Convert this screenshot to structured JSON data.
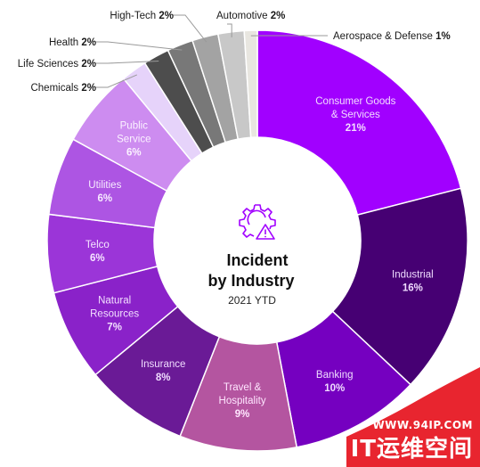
{
  "chart_data": {
    "type": "pie",
    "title": "Incident",
    "title_line2": "by Industry",
    "subtitle": "2021 YTD",
    "slices": [
      {
        "name": "Consumer Goods & Services",
        "value": 21,
        "pct_label": "21%",
        "label_lines": [
          "Consumer Goods",
          "& Services"
        ],
        "color": "#a100ff",
        "text_color": "#f3dcff"
      },
      {
        "name": "Industrial",
        "value": 16,
        "pct_label": "16%",
        "label_lines": [
          "Industrial"
        ],
        "color": "#460073",
        "text_color": "#f0dcff"
      },
      {
        "name": "Banking",
        "value": 10,
        "pct_label": "10%",
        "label_lines": [
          "Banking"
        ],
        "color": "#7500c0",
        "text_color": "#f0dcff"
      },
      {
        "name": "Travel & Hospitality",
        "value": 9,
        "pct_label": "9%",
        "label_lines": [
          "Travel &",
          "Hospitality"
        ],
        "color": "#b455a0",
        "text_color": "#ffe6ff"
      },
      {
        "name": "Insurance",
        "value": 8,
        "pct_label": "8%",
        "label_lines": [
          "Insurance"
        ],
        "color": "#6a1a96",
        "text_color": "#f0dcff"
      },
      {
        "name": "Natural Resources",
        "value": 7,
        "pct_label": "7%",
        "label_lines": [
          "Natural",
          "Resources"
        ],
        "color": "#8a22c9",
        "text_color": "#f3e0ff"
      },
      {
        "name": "Telco",
        "value": 6,
        "pct_label": "6%",
        "label_lines": [
          "Telco"
        ],
        "color": "#9b35d8",
        "text_color": "#f6e6ff"
      },
      {
        "name": "Utilities",
        "value": 6,
        "pct_label": "6%",
        "label_lines": [
          "Utilities"
        ],
        "color": "#ad55e3",
        "text_color": "#f8ecff"
      },
      {
        "name": "Public Service",
        "value": 6,
        "pct_label": "6%",
        "label_lines": [
          "Public",
          "Service"
        ],
        "color": "#cd8cf0",
        "text_color": "#fbf2ff"
      },
      {
        "name": "Chemicals",
        "value": 2,
        "pct_label": "2%",
        "label_lines": [
          "Chemicals"
        ],
        "color": "#e6d3fa",
        "external": true,
        "label_side": "left"
      },
      {
        "name": "Life Sciences",
        "value": 2,
        "pct_label": "2%",
        "label_lines": [
          "Life Sciences"
        ],
        "color": "#4d4d4d",
        "external": true,
        "label_side": "left"
      },
      {
        "name": "Health",
        "value": 2,
        "pct_label": "2%",
        "label_lines": [
          "Health"
        ],
        "color": "#787878",
        "external": true,
        "label_side": "left"
      },
      {
        "name": "High-Tech",
        "value": 2,
        "pct_label": "2%",
        "label_lines": [
          "High-Tech"
        ],
        "color": "#a3a3a3",
        "external": true,
        "label_side": "left"
      },
      {
        "name": "Automotive",
        "value": 2,
        "pct_label": "2%",
        "label_lines": [
          "Automotive"
        ],
        "color": "#c8c8c8",
        "external": true,
        "label_side": "right"
      },
      {
        "name": "Aerospace & Defense",
        "value": 1,
        "pct_label": "1%",
        "label_lines": [
          "Aerospace & Defense"
        ],
        "color": "#e8e6e0",
        "external": true,
        "label_side": "right"
      }
    ],
    "center_icon": "gear-warning-icon",
    "center_icon_color": "#a100ff"
  },
  "watermark": {
    "url": "WWW.94IP.COM",
    "name": "IT运维空间",
    "color": "#e8252f"
  }
}
